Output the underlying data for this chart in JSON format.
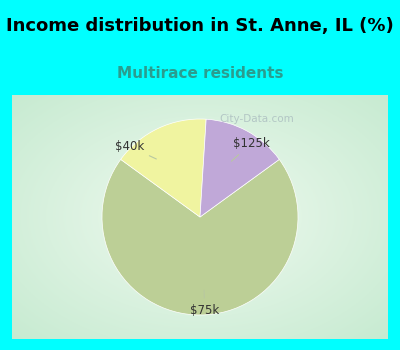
{
  "title": "Income distribution in St. Anne, IL (%)",
  "subtitle": "Multirace residents",
  "title_color": "#000000",
  "subtitle_color": "#2a9d8f",
  "fig_bg_color": "#00ffff",
  "chart_bg_top_left": "#c8e8d0",
  "chart_bg_center": "#f0f8f0",
  "slices": [
    {
      "label": "$75k",
      "value": 70,
      "color": "#bccf96"
    },
    {
      "label": "$40k",
      "value": 16,
      "color": "#f0f4a0"
    },
    {
      "label": "$125k",
      "value": 14,
      "color": "#c0a8d8"
    }
  ],
  "watermark": "City-Data.com",
  "label_color": "#333333",
  "leader_color": "#b8c8a0",
  "startangle": 54,
  "title_fontsize": 13,
  "subtitle_fontsize": 11
}
